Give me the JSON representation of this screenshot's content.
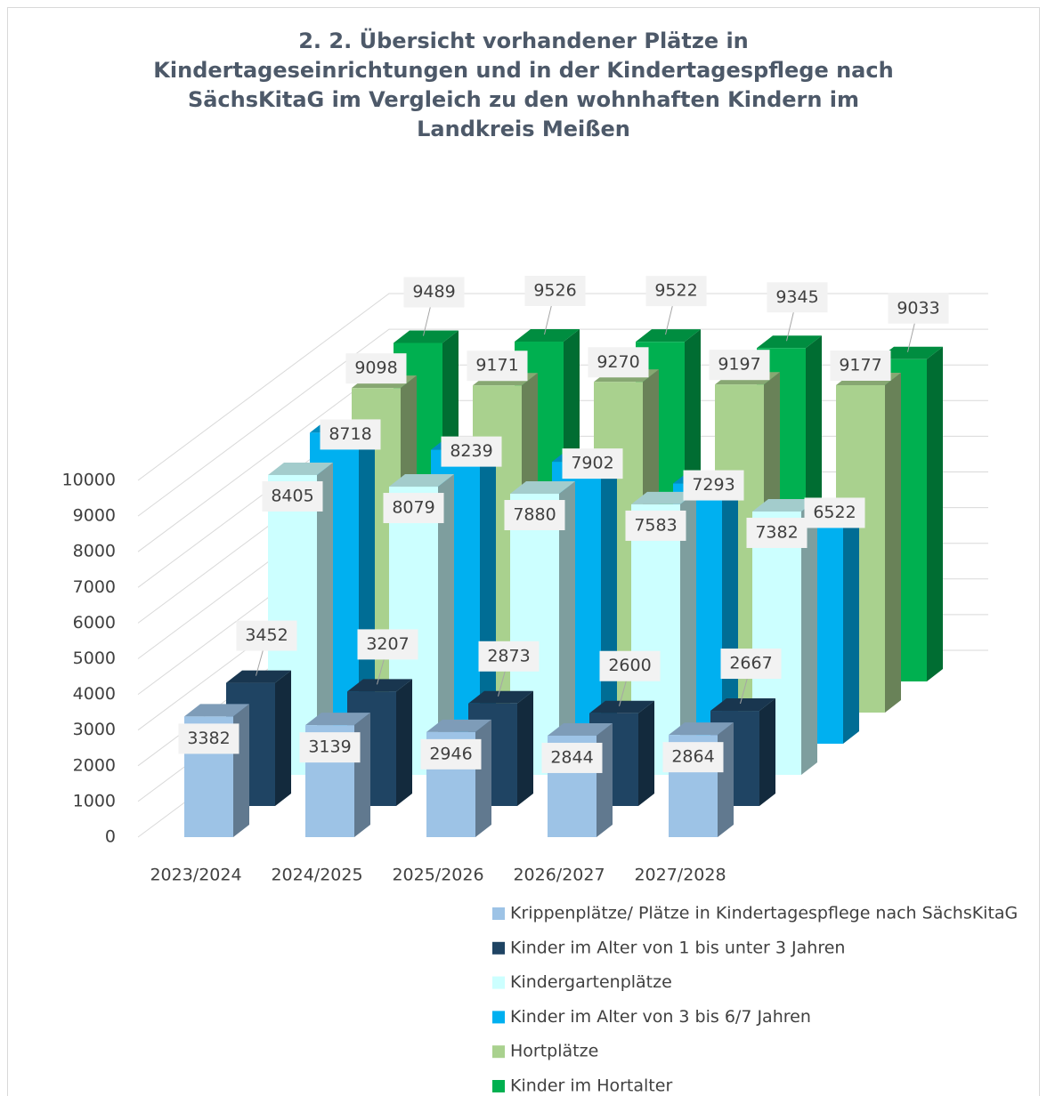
{
  "chart_data": {
    "type": "bar3d",
    "title": [
      "2. 2. Übersicht vorhandener Plätze in",
      "Kindertageseinrichtungen und in der Kindertagespflege nach",
      "SächsKitaG im Vergleich zu den wohnhaften Kindern im",
      "Landkreis Meißen"
    ],
    "categories": [
      "2023/2024",
      "2024/2025",
      "2025/2026",
      "2026/2027",
      "2027/2028"
    ],
    "series": [
      {
        "name": "Krippenplätze/ Plätze in Kindertagespflege nach SächsKitaG",
        "color": "#9dc3e6",
        "values": [
          3382,
          3139,
          2946,
          2844,
          2864
        ]
      },
      {
        "name": "Kinder im Alter von 1 bis unter 3 Jahren",
        "color": "#1f4463",
        "values": [
          3452,
          3207,
          2873,
          2600,
          2667
        ]
      },
      {
        "name": "Kindergartenplätze",
        "color": "#ccffff",
        "values": [
          8405,
          8079,
          7880,
          7583,
          7382
        ]
      },
      {
        "name": "Kinder im Alter von 3 bis 6/7 Jahren",
        "color": "#00b0f0",
        "values": [
          8718,
          8239,
          7902,
          7293,
          6522
        ]
      },
      {
        "name": "Hortplätze",
        "color": "#a9d18e",
        "values": [
          9098,
          9171,
          9270,
          9197,
          9177
        ]
      },
      {
        "name": "Kinder im Hortalter",
        "color": "#00b050",
        "values": [
          9489,
          9526,
          9522,
          9345,
          9033
        ]
      }
    ],
    "ylim": [
      0,
      10000
    ],
    "yticks": [
      0,
      1000,
      2000,
      3000,
      4000,
      5000,
      6000,
      7000,
      8000,
      9000,
      10000
    ],
    "grid": true
  }
}
